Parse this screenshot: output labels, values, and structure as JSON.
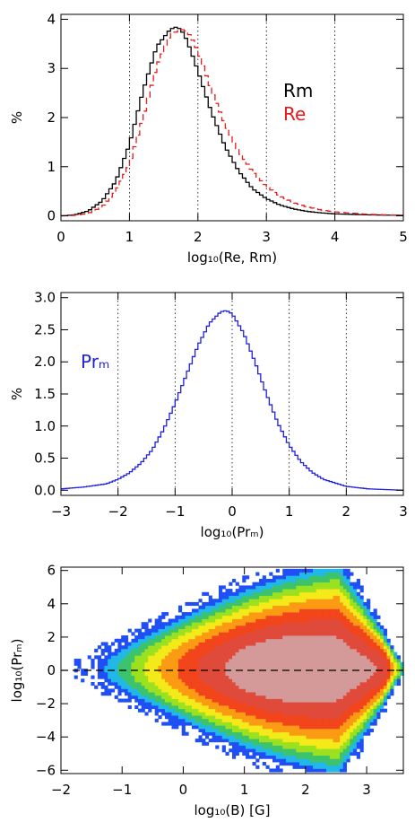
{
  "colors": {
    "black": "#000000",
    "red": "#e41a1c",
    "blue": "#1f1fdd",
    "grid": "#000000"
  },
  "chart_data": [
    {
      "type": "line",
      "xlabel": "log₁₀(Re, Rm)",
      "ylabel": "%",
      "xlim": [
        0,
        5
      ],
      "ylim": [
        -0.1,
        4.1
      ],
      "xticks": [
        "0",
        "1",
        "2",
        "3",
        "4",
        "5"
      ],
      "yticks": [
        "0",
        "1",
        "2",
        "3",
        "4"
      ],
      "vgrid": [
        1,
        2,
        3,
        4
      ],
      "legend": [
        "Rm",
        "Re"
      ],
      "series": [
        {
          "name": "Rm",
          "color": "#000000",
          "dash": false,
          "x": [
            0.0,
            0.2,
            0.4,
            0.6,
            0.8,
            1.0,
            1.2,
            1.4,
            1.6,
            1.7,
            1.8,
            1.9,
            2.0,
            2.2,
            2.4,
            2.6,
            2.8,
            3.0,
            3.2,
            3.4,
            3.6,
            3.8,
            4.0,
            4.5,
            5.0
          ],
          "y": [
            0.0,
            0.02,
            0.1,
            0.3,
            0.7,
            1.45,
            2.55,
            3.45,
            3.8,
            3.85,
            3.7,
            3.35,
            2.95,
            2.1,
            1.4,
            0.9,
            0.55,
            0.35,
            0.22,
            0.14,
            0.09,
            0.06,
            0.04,
            0.02,
            0.01
          ]
        },
        {
          "name": "Re",
          "color": "#e41a1c",
          "dash": true,
          "x": [
            0.0,
            0.2,
            0.4,
            0.6,
            0.8,
            1.0,
            1.2,
            1.4,
            1.6,
            1.8,
            1.9,
            2.0,
            2.2,
            2.4,
            2.6,
            2.8,
            3.0,
            3.2,
            3.4,
            3.6,
            3.8,
            4.0,
            4.5,
            5.0
          ],
          "y": [
            0.0,
            0.01,
            0.05,
            0.18,
            0.5,
            1.05,
            2.0,
            3.05,
            3.7,
            3.8,
            3.65,
            3.35,
            2.55,
            1.85,
            1.3,
            0.9,
            0.6,
            0.4,
            0.27,
            0.18,
            0.12,
            0.08,
            0.03,
            0.01
          ]
        }
      ]
    },
    {
      "type": "line",
      "xlabel": "log₁₀(Prₘ)",
      "ylabel": "%",
      "xlim": [
        -3,
        3
      ],
      "ylim": [
        -0.08,
        3.08
      ],
      "xticks": [
        "−3",
        "−2",
        "−1",
        "0",
        "1",
        "2",
        "3"
      ],
      "yticks": [
        "0.0",
        "0.5",
        "1.0",
        "1.5",
        "2.0",
        "2.5",
        "3.0"
      ],
      "vgrid": [
        -2,
        -1,
        0,
        1,
        2
      ],
      "legend": [
        "Prₘ"
      ],
      "series": [
        {
          "name": "Prₘ",
          "color": "#1f1fdd",
          "dash": false,
          "x": [
            -3.0,
            -2.6,
            -2.2,
            -2.0,
            -1.8,
            -1.6,
            -1.4,
            -1.2,
            -1.0,
            -0.8,
            -0.6,
            -0.4,
            -0.2,
            -0.1,
            0.0,
            0.2,
            0.4,
            0.6,
            0.8,
            1.0,
            1.2,
            1.4,
            1.6,
            2.0,
            2.4,
            3.0
          ],
          "y": [
            0.02,
            0.05,
            0.1,
            0.17,
            0.27,
            0.42,
            0.63,
            0.95,
            1.35,
            1.8,
            2.25,
            2.6,
            2.78,
            2.8,
            2.75,
            2.45,
            2.0,
            1.5,
            1.05,
            0.7,
            0.45,
            0.28,
            0.17,
            0.06,
            0.02,
            0.0
          ]
        }
      ]
    },
    {
      "type": "heatmap",
      "xlabel": "log₁₀(B)  [G]",
      "ylabel": "log₁₀(Prₘ)",
      "xlim": [
        -2,
        3.6
      ],
      "ylim": [
        -6.2,
        6.2
      ],
      "xticks": [
        "−2",
        "−1",
        "0",
        "1",
        "2",
        "3"
      ],
      "yticks": [
        "−6",
        "−4",
        "−2",
        "0",
        "2",
        "4",
        "6"
      ],
      "reference_line": {
        "y": 0,
        "dash": true
      },
      "colorscale": [
        "#1f4ff5",
        "#21b8e8",
        "#3cc36b",
        "#9be11f",
        "#f4ea1a",
        "#fb9b14",
        "#f2451b",
        "#e04a3a",
        "#d49a9a"
      ],
      "density_model": "2D histogram peaked near log₁₀(B)≈1.7, log₁₀(Prₘ)≈0; spread widens with B up to ~2.5 and drops sharply above 3.3"
    }
  ]
}
